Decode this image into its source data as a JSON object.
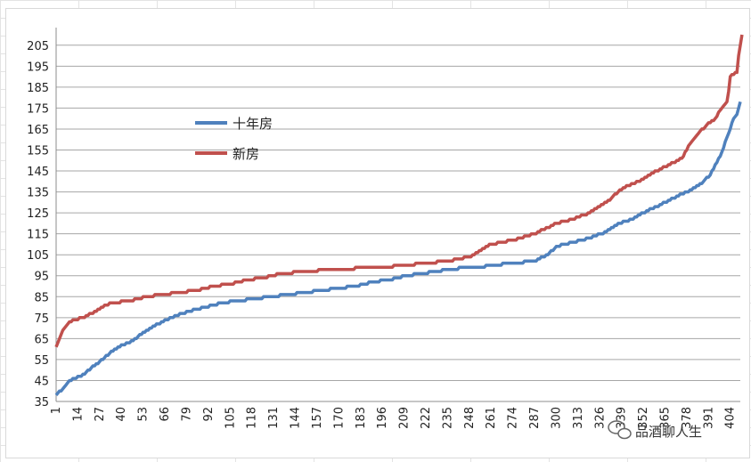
{
  "chart_data": {
    "type": "line",
    "title": "",
    "xlabel": "",
    "ylabel": "",
    "ylim": [
      35,
      210
    ],
    "yticks": [
      35,
      45,
      55,
      65,
      75,
      85,
      95,
      105,
      115,
      125,
      135,
      145,
      155,
      165,
      175,
      185,
      195,
      205
    ],
    "x_count": 400,
    "xticks": [
      "1",
      "14",
      "27",
      "40",
      "53",
      "66",
      "79",
      "92",
      "105",
      "118",
      "131",
      "144",
      "157",
      "170",
      "183",
      "196",
      "209",
      "222",
      "235",
      "248",
      "261",
      "274",
      "287",
      "300",
      "313",
      "326",
      "339",
      "352",
      "365",
      "378",
      "391",
      "404"
    ],
    "grid": "horizontal",
    "legend": "upper-left inside plot",
    "series": [
      {
        "name": "十年房",
        "color": "#4f81bd",
        "anchors": [
          [
            1,
            38
          ],
          [
            5,
            41
          ],
          [
            8,
            44
          ],
          [
            12,
            46
          ],
          [
            18,
            48
          ],
          [
            22,
            51
          ],
          [
            27,
            54
          ],
          [
            33,
            58
          ],
          [
            40,
            62
          ],
          [
            45,
            63
          ],
          [
            50,
            66
          ],
          [
            56,
            69
          ],
          [
            62,
            72
          ],
          [
            70,
            75
          ],
          [
            80,
            78
          ],
          [
            90,
            80
          ],
          [
            100,
            82
          ],
          [
            110,
            83
          ],
          [
            120,
            84
          ],
          [
            130,
            85
          ],
          [
            140,
            86
          ],
          [
            150,
            87
          ],
          [
            160,
            88
          ],
          [
            170,
            89
          ],
          [
            180,
            90
          ],
          [
            190,
            92
          ],
          [
            200,
            93
          ],
          [
            210,
            95
          ],
          [
            220,
            96
          ],
          [
            235,
            98
          ],
          [
            248,
            99
          ],
          [
            255,
            99
          ],
          [
            261,
            100
          ],
          [
            274,
            101
          ],
          [
            287,
            102
          ],
          [
            295,
            105
          ],
          [
            300,
            109
          ],
          [
            310,
            111
          ],
          [
            320,
            113
          ],
          [
            330,
            116
          ],
          [
            335,
            119
          ],
          [
            345,
            122
          ],
          [
            352,
            125
          ],
          [
            360,
            128
          ],
          [
            370,
            132
          ],
          [
            378,
            135
          ],
          [
            385,
            138
          ],
          [
            392,
            143
          ],
          [
            398,
            152
          ],
          [
            403,
            163
          ],
          [
            406,
            170
          ],
          [
            408,
            172
          ],
          [
            410,
            178
          ]
        ]
      },
      {
        "name": "新房",
        "color": "#c0504d",
        "anchors": [
          [
            1,
            61
          ],
          [
            3,
            65
          ],
          [
            5,
            69
          ],
          [
            8,
            72
          ],
          [
            12,
            74
          ],
          [
            18,
            75
          ],
          [
            22,
            77
          ],
          [
            27,
            79
          ],
          [
            30,
            81
          ],
          [
            35,
            82
          ],
          [
            45,
            83
          ],
          [
            55,
            85
          ],
          [
            65,
            86
          ],
          [
            75,
            87
          ],
          [
            85,
            88
          ],
          [
            95,
            90
          ],
          [
            105,
            91
          ],
          [
            115,
            93
          ],
          [
            125,
            94
          ],
          [
            135,
            96
          ],
          [
            150,
            97
          ],
          [
            165,
            98
          ],
          [
            180,
            98.5
          ],
          [
            195,
            99
          ],
          [
            210,
            100
          ],
          [
            222,
            101
          ],
          [
            235,
            102
          ],
          [
            248,
            104
          ],
          [
            255,
            107
          ],
          [
            261,
            110
          ],
          [
            274,
            112
          ],
          [
            287,
            115
          ],
          [
            295,
            118
          ],
          [
            300,
            120
          ],
          [
            310,
            122
          ],
          [
            320,
            125
          ],
          [
            330,
            130
          ],
          [
            340,
            137
          ],
          [
            352,
            141
          ],
          [
            360,
            145
          ],
          [
            370,
            149
          ],
          [
            375,
            151
          ],
          [
            380,
            158
          ],
          [
            385,
            163
          ],
          [
            390,
            167
          ],
          [
            395,
            170
          ],
          [
            399,
            175
          ],
          [
            402,
            178
          ],
          [
            403,
            183
          ],
          [
            404,
            190
          ],
          [
            408,
            192
          ],
          [
            409,
            200
          ],
          [
            411,
            210
          ]
        ]
      }
    ]
  },
  "watermark": {
    "text": "品酒聊人生"
  }
}
